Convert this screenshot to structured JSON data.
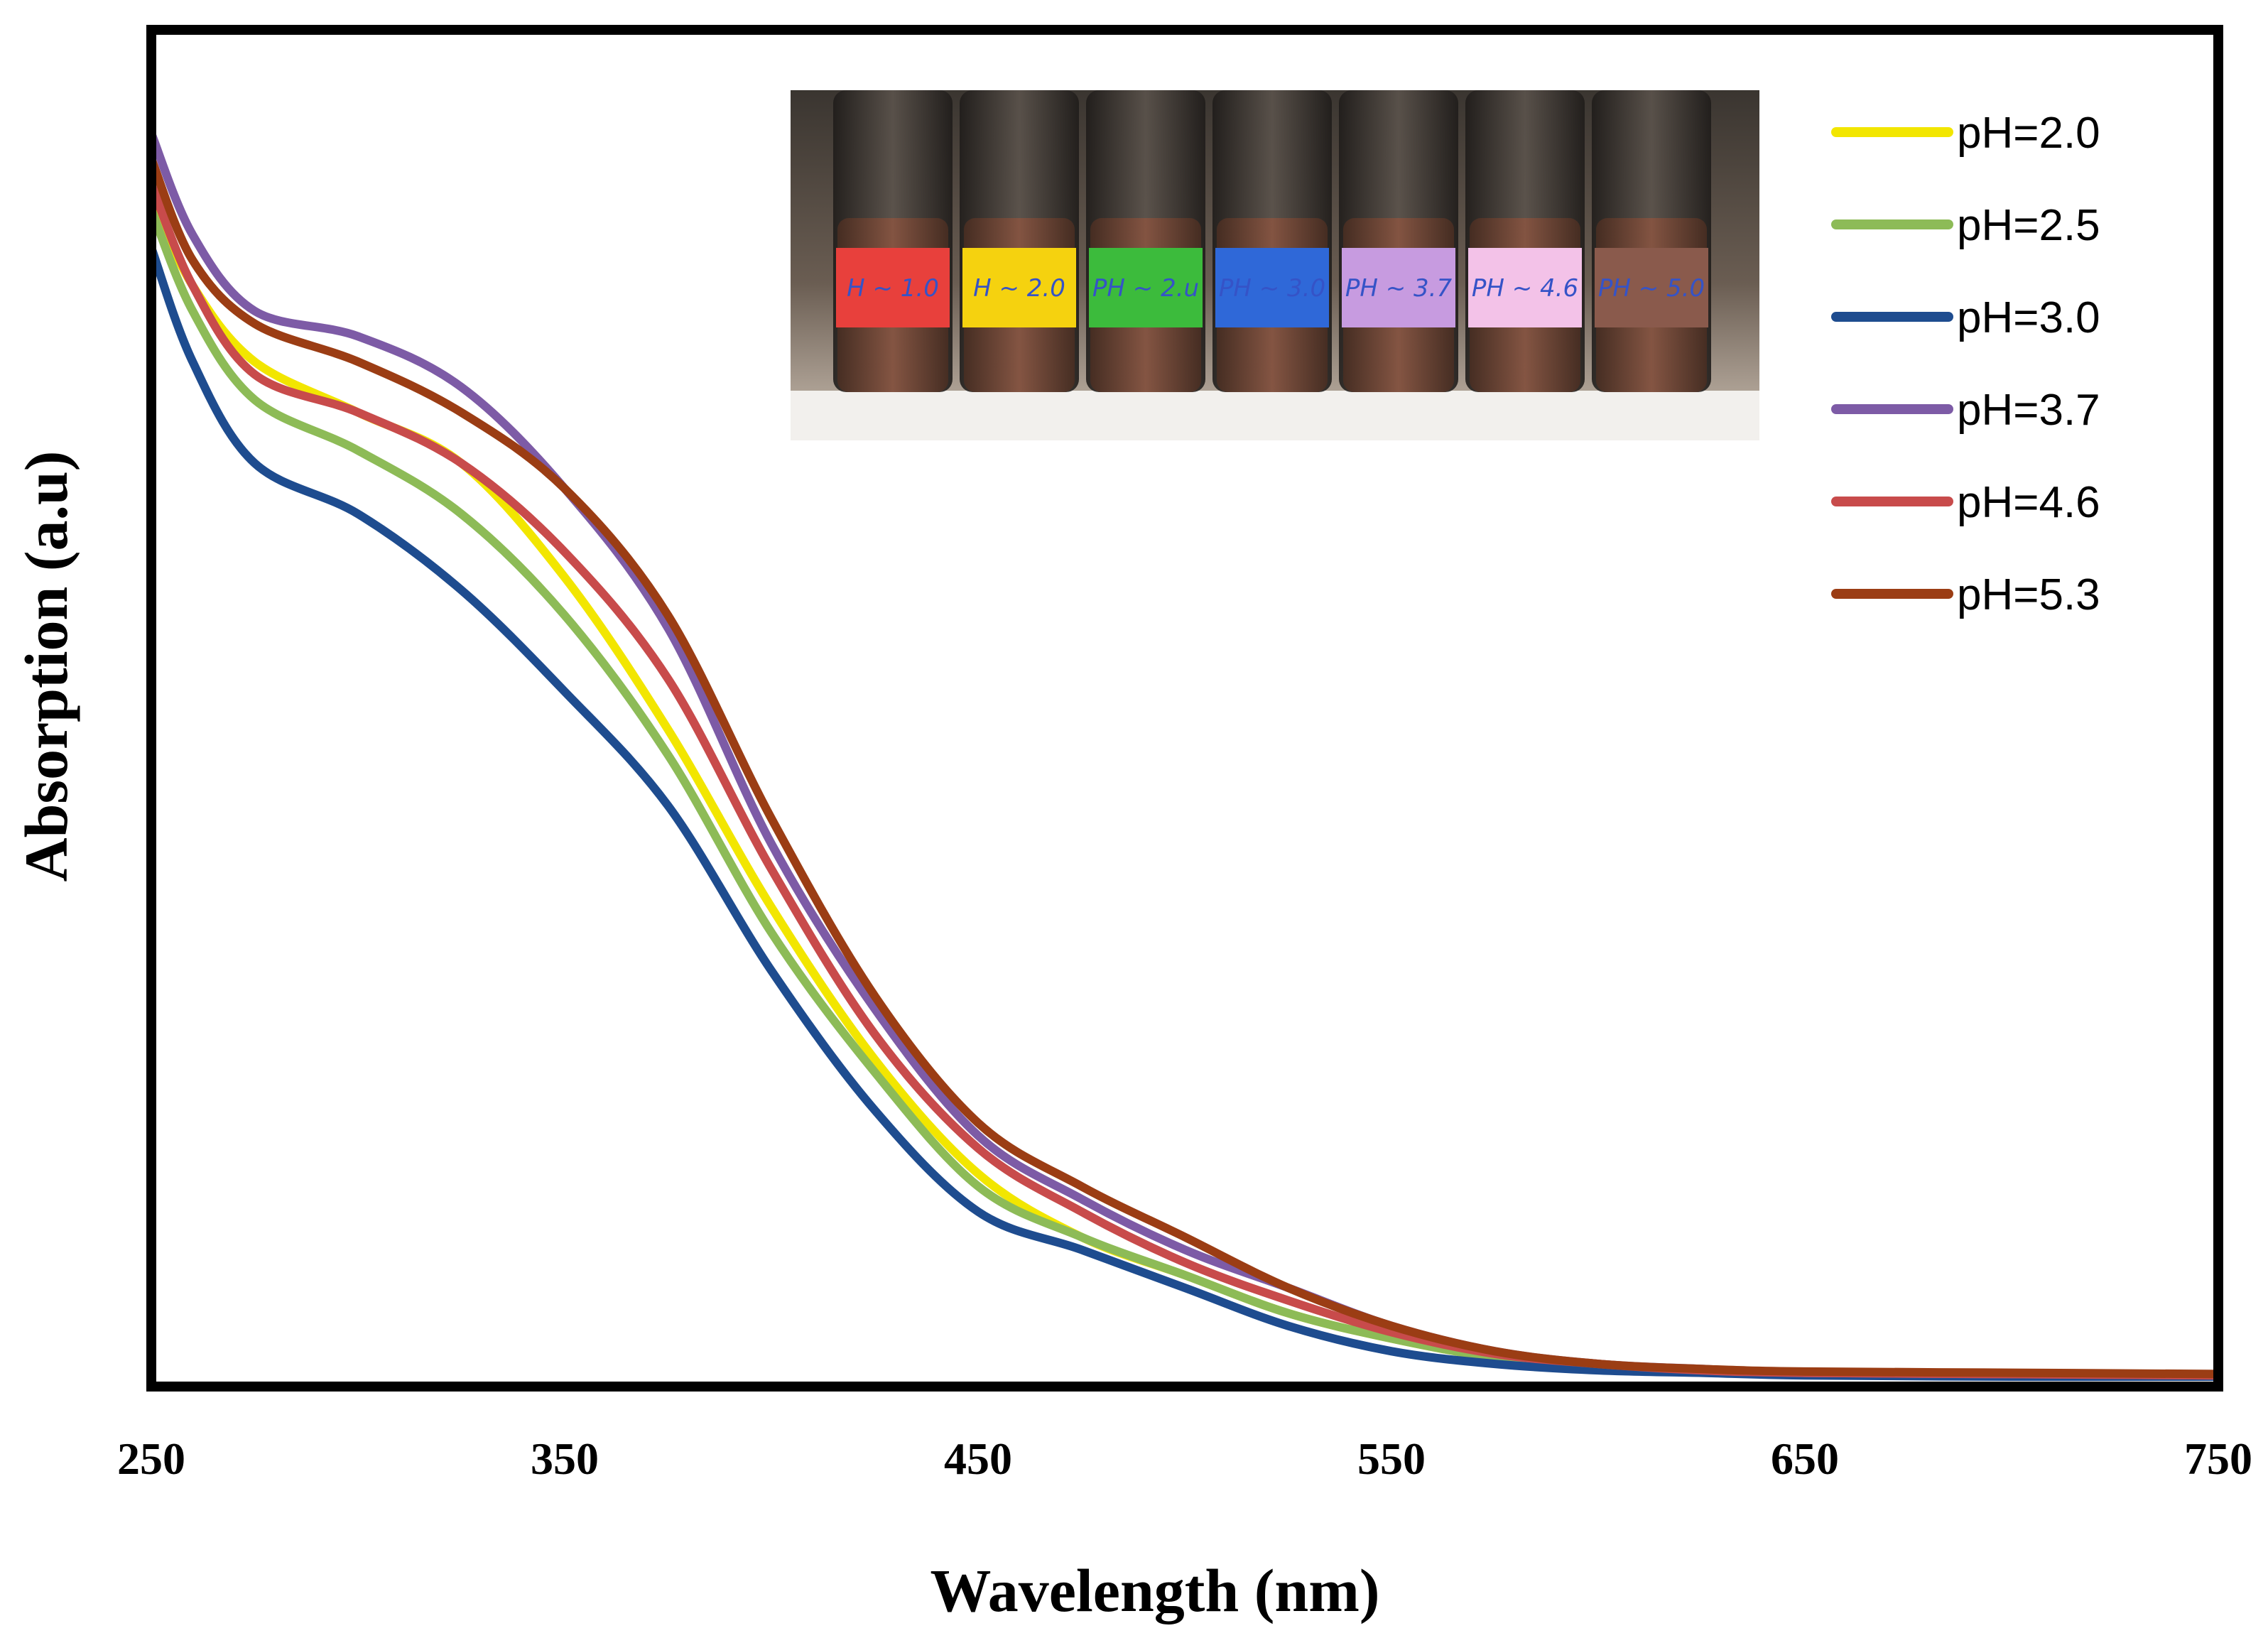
{
  "chart_data": {
    "type": "line",
    "title": "",
    "xlabel": "Wavelength (nm)",
    "ylabel": "Absorption (a.u)",
    "xlim": [
      250,
      750
    ],
    "ylim": [
      0,
      1
    ],
    "x_ticks": [
      "250",
      "350",
      "450",
      "550",
      "650",
      "750"
    ],
    "y_ticks": [],
    "grid": false,
    "legend_position": "top-right",
    "x": [
      250,
      260,
      275,
      300,
      325,
      350,
      375,
      400,
      425,
      450,
      475,
      500,
      525,
      550,
      575,
      600,
      625,
      650,
      700,
      750
    ],
    "series": [
      {
        "name": "pH=2.0",
        "color": "#f2e600",
        "values": [
          0.93,
          0.86,
          0.8,
          0.76,
          0.72,
          0.63,
          0.51,
          0.37,
          0.25,
          0.16,
          0.11,
          0.08,
          0.05,
          0.03,
          0.015,
          0.008,
          0.004,
          0.002,
          0.001,
          0.0
        ]
      },
      {
        "name": "pH=2.5",
        "color": "#8dbb57",
        "values": [
          0.92,
          0.84,
          0.77,
          0.73,
          0.68,
          0.6,
          0.49,
          0.35,
          0.24,
          0.15,
          0.11,
          0.08,
          0.05,
          0.03,
          0.015,
          0.008,
          0.004,
          0.002,
          0.001,
          0.0
        ]
      },
      {
        "name": "pH=3.0",
        "color": "#1e4c8f",
        "values": [
          0.89,
          0.8,
          0.72,
          0.68,
          0.62,
          0.54,
          0.45,
          0.32,
          0.21,
          0.13,
          0.1,
          0.07,
          0.04,
          0.02,
          0.01,
          0.005,
          0.003,
          0.001,
          0.0,
          0.0
        ]
      },
      {
        "name": "pH=3.7",
        "color": "#7d5ba6",
        "values": [
          0.98,
          0.9,
          0.84,
          0.82,
          0.78,
          0.7,
          0.59,
          0.42,
          0.29,
          0.19,
          0.14,
          0.1,
          0.07,
          0.04,
          0.02,
          0.01,
          0.006,
          0.003,
          0.002,
          0.001
        ]
      },
      {
        "name": "pH=4.6",
        "color": "#c84b4b",
        "values": [
          0.94,
          0.86,
          0.79,
          0.76,
          0.72,
          0.65,
          0.55,
          0.4,
          0.27,
          0.18,
          0.13,
          0.09,
          0.06,
          0.035,
          0.018,
          0.01,
          0.005,
          0.003,
          0.002,
          0.001
        ]
      },
      {
        "name": "pH=5.3",
        "color": "#9b3d14",
        "values": [
          0.96,
          0.88,
          0.83,
          0.8,
          0.76,
          0.7,
          0.6,
          0.44,
          0.3,
          0.2,
          0.15,
          0.11,
          0.07,
          0.04,
          0.02,
          0.01,
          0.006,
          0.004,
          0.003,
          0.002
        ]
      }
    ],
    "inset_photo": {
      "vial_labels": [
        "H ~ 1.0",
        "H ~ 2.0",
        "PH ~ 2.u",
        "PH ~ 3.0",
        "PH ~ 3.7",
        "PH ~ 4.6",
        "PH ~ 5.0"
      ],
      "vial_label_colors": [
        "#e8403c",
        "#f5d20f",
        "#3cbb3c",
        "#2f68d8",
        "#c79be0",
        "#f3c2e8",
        "#8a5a4c"
      ]
    }
  }
}
